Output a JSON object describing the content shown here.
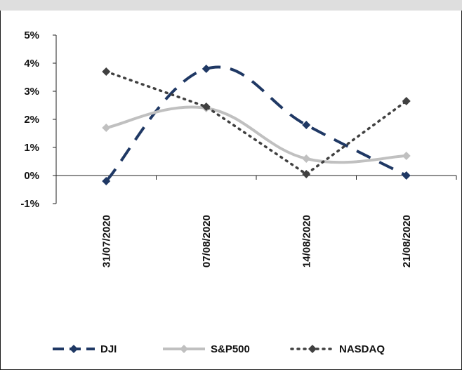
{
  "chart_data": {
    "type": "line",
    "categories": [
      "31/07/2020",
      "07/08/2020",
      "14/08/2020",
      "21/08/2020"
    ],
    "series": [
      {
        "name": "DJI",
        "values": [
          -0.2,
          3.8,
          1.8,
          0.0
        ],
        "color": "#1f3864",
        "dash": "dashed",
        "marker": "diamond",
        "smooth": true
      },
      {
        "name": "S&P500",
        "values": [
          1.7,
          2.4,
          0.6,
          0.7
        ],
        "color": "#c0c0c0",
        "dash": "solid",
        "marker": "diamond",
        "smooth": true
      },
      {
        "name": "NASDAQ",
        "values": [
          3.7,
          2.45,
          0.05,
          2.65
        ],
        "color": "#404040",
        "dash": "dotted",
        "marker": "diamond",
        "smooth": false
      }
    ],
    "yticks": [
      "5%",
      "4%",
      "3%",
      "2%",
      "1%",
      "0%",
      "-1%"
    ],
    "ylim": [
      -1,
      5
    ],
    "legend": "bottom",
    "grid": false
  }
}
